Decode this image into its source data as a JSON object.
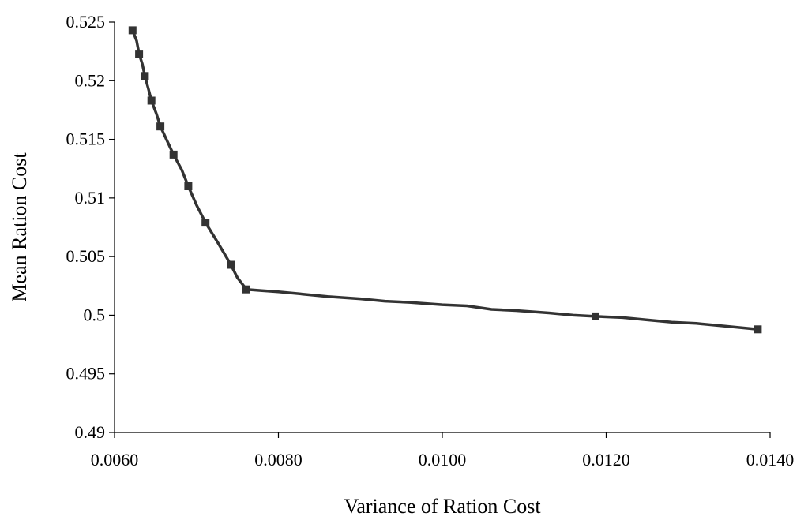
{
  "chart_data": {
    "type": "line",
    "title": "",
    "xlabel": "Variance of Ration Cost",
    "ylabel": "Mean Ration Cost",
    "xlim": [
      0.006,
      0.014
    ],
    "ylim": [
      0.49,
      0.525
    ],
    "x_ticks": [
      0.006,
      0.008,
      0.01,
      0.012,
      0.014
    ],
    "x_tick_labels": [
      "0.0060",
      "0.0080",
      "0.0100",
      "0.0120",
      "0.0140"
    ],
    "y_ticks": [
      0.49,
      0.495,
      0.5,
      0.505,
      0.51,
      0.515,
      0.52,
      0.525
    ],
    "y_tick_labels": [
      "0.49",
      "0.495",
      "0.5",
      "0.505",
      "0.51",
      "0.515",
      "0.52",
      "0.525"
    ],
    "grid": false,
    "legend": "none",
    "series": [
      {
        "color": "#333333",
        "line_points": [
          {
            "x": 0.00622,
            "y": 0.5243
          },
          {
            "x": 0.00627,
            "y": 0.5234
          },
          {
            "x": 0.0063,
            "y": 0.5223
          },
          {
            "x": 0.00634,
            "y": 0.5214
          },
          {
            "x": 0.00637,
            "y": 0.5204
          },
          {
            "x": 0.00641,
            "y": 0.5194
          },
          {
            "x": 0.00645,
            "y": 0.5183
          },
          {
            "x": 0.00651,
            "y": 0.5172
          },
          {
            "x": 0.00656,
            "y": 0.5161
          },
          {
            "x": 0.00664,
            "y": 0.5149
          },
          {
            "x": 0.00672,
            "y": 0.5137
          },
          {
            "x": 0.00682,
            "y": 0.5124
          },
          {
            "x": 0.0069,
            "y": 0.511
          },
          {
            "x": 0.007,
            "y": 0.5094
          },
          {
            "x": 0.00711,
            "y": 0.5079
          },
          {
            "x": 0.00726,
            "y": 0.5062
          },
          {
            "x": 0.00742,
            "y": 0.5043
          },
          {
            "x": 0.0075,
            "y": 0.5032
          },
          {
            "x": 0.00761,
            "y": 0.5022
          },
          {
            "x": 0.0078,
            "y": 0.5021
          },
          {
            "x": 0.008,
            "y": 0.502
          },
          {
            "x": 0.0083,
            "y": 0.5018
          },
          {
            "x": 0.0086,
            "y": 0.5016
          },
          {
            "x": 0.009,
            "y": 0.5014
          },
          {
            "x": 0.0093,
            "y": 0.5012
          },
          {
            "x": 0.0096,
            "y": 0.5011
          },
          {
            "x": 0.01,
            "y": 0.5009
          },
          {
            "x": 0.0103,
            "y": 0.5008
          },
          {
            "x": 0.0106,
            "y": 0.5005
          },
          {
            "x": 0.0109,
            "y": 0.5004
          },
          {
            "x": 0.0113,
            "y": 0.5002
          },
          {
            "x": 0.0116,
            "y": 0.5
          },
          {
            "x": 0.01187,
            "y": 0.4999
          },
          {
            "x": 0.0122,
            "y": 0.4998
          },
          {
            "x": 0.0125,
            "y": 0.4996
          },
          {
            "x": 0.0128,
            "y": 0.4994
          },
          {
            "x": 0.0131,
            "y": 0.4993
          },
          {
            "x": 0.0134,
            "y": 0.4991
          },
          {
            "x": 0.0137,
            "y": 0.4989
          },
          {
            "x": 0.01385,
            "y": 0.4988
          }
        ],
        "markers": [
          {
            "x": 0.00622,
            "y": 0.5243
          },
          {
            "x": 0.0063,
            "y": 0.5223
          },
          {
            "x": 0.00637,
            "y": 0.5204
          },
          {
            "x": 0.00645,
            "y": 0.5183
          },
          {
            "x": 0.00656,
            "y": 0.5161
          },
          {
            "x": 0.00672,
            "y": 0.5137
          },
          {
            "x": 0.0069,
            "y": 0.511
          },
          {
            "x": 0.00711,
            "y": 0.5079
          },
          {
            "x": 0.00742,
            "y": 0.5043
          },
          {
            "x": 0.00761,
            "y": 0.5022
          },
          {
            "x": 0.01187,
            "y": 0.4999
          },
          {
            "x": 0.01385,
            "y": 0.4988
          }
        ]
      }
    ]
  }
}
